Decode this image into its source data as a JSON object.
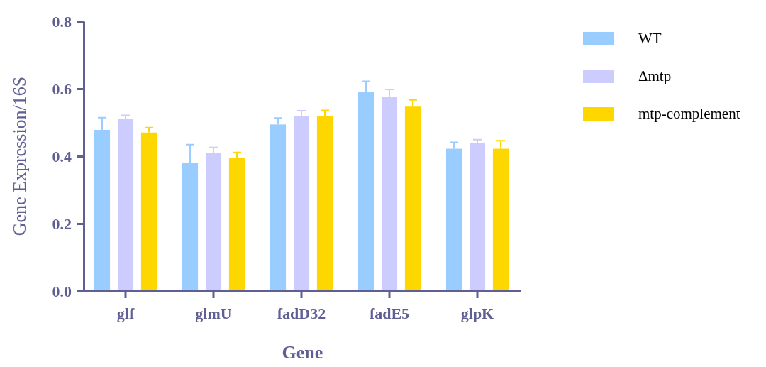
{
  "chart_data": {
    "type": "bar",
    "xlabel": "Gene",
    "ylabel": "Gene Expression/16S",
    "categories": [
      "glf",
      "glmU",
      "fadD32",
      "fadE5",
      "glpK"
    ],
    "ylim": [
      0,
      0.8
    ],
    "yticks": [
      {
        "value": 0,
        "label": "0.0"
      },
      0.2,
      0.4,
      0.6,
      0.8
    ],
    "grid": false,
    "legend": "right",
    "series": [
      {
        "name": "WT",
        "color": "#99ccff",
        "values": [
          0.478,
          0.381,
          0.494,
          0.591,
          0.422
        ],
        "errors": [
          [
            0.478,
            0.514
          ],
          [
            0.381,
            0.434
          ],
          [
            0.494,
            0.513
          ],
          [
            0.591,
            0.622
          ],
          [
            0.422,
            0.441
          ]
        ]
      },
      {
        "name": "Δmtp",
        "color": "#ccccff",
        "values": [
          0.51,
          0.41,
          0.518,
          0.575,
          0.438
        ],
        "errors": [
          [
            0.51,
            0.521
          ],
          [
            0.41,
            0.426
          ],
          [
            0.518,
            0.535
          ],
          [
            0.575,
            0.598
          ],
          [
            0.438,
            0.449
          ]
        ]
      },
      {
        "name": "mtp-complement",
        "color": "#ffd700",
        "values": [
          0.47,
          0.395,
          0.518,
          0.547,
          0.422
        ],
        "errors": [
          [
            0.47,
            0.485
          ],
          [
            0.395,
            0.411
          ],
          [
            0.518,
            0.536
          ],
          [
            0.547,
            0.567
          ],
          [
            0.422,
            0.446
          ]
        ]
      }
    ]
  }
}
